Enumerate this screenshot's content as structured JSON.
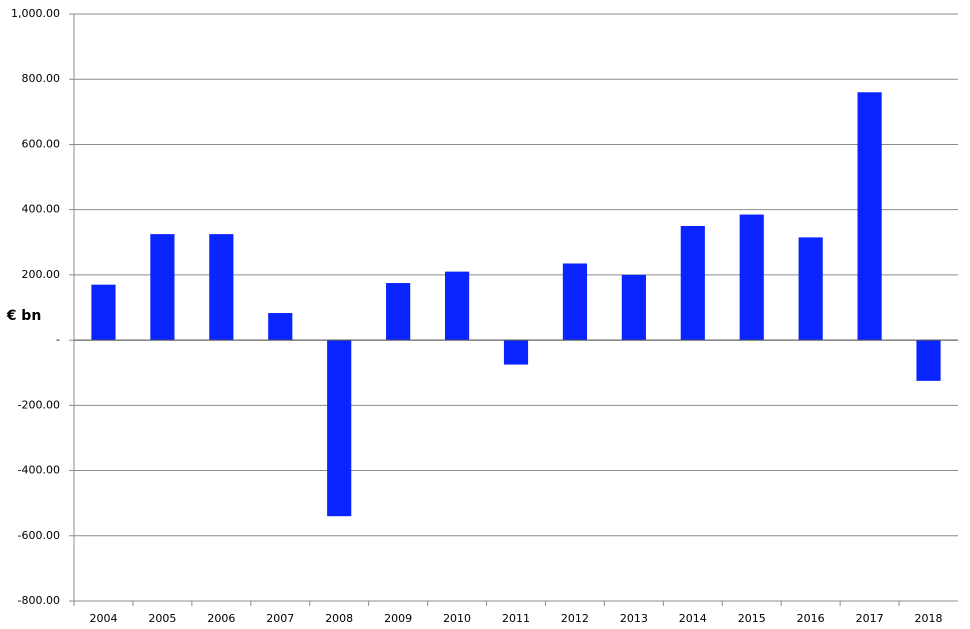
{
  "chart_data": {
    "type": "bar",
    "y_label": "€ bn",
    "categories": [
      "2004",
      "2005",
      "2006",
      "2007",
      "2008",
      "2009",
      "2010",
      "2011",
      "2012",
      "2013",
      "2014",
      "2015",
      "2016",
      "2017",
      "2018"
    ],
    "values": [
      170,
      325,
      325,
      83,
      -540,
      175,
      210,
      -75,
      235,
      200,
      350,
      385,
      315,
      760,
      -125
    ],
    "color": "#0a24ff",
    "ylim": [
      -800,
      1000
    ],
    "yticks": [
      {
        "value": 1000,
        "label": "1,000.00"
      },
      {
        "value": 800,
        "label": "800.00"
      },
      {
        "value": 600,
        "label": "600.00"
      },
      {
        "value": 400,
        "label": "400.00"
      },
      {
        "value": 200,
        "label": "200.00"
      },
      {
        "value": 0,
        "label": "-"
      },
      {
        "value": -200,
        "label": "-200.00"
      },
      {
        "value": -400,
        "label": "-400.00"
      },
      {
        "value": -600,
        "label": "-600.00"
      },
      {
        "value": -800,
        "label": "-800.00"
      }
    ],
    "grid": true
  }
}
